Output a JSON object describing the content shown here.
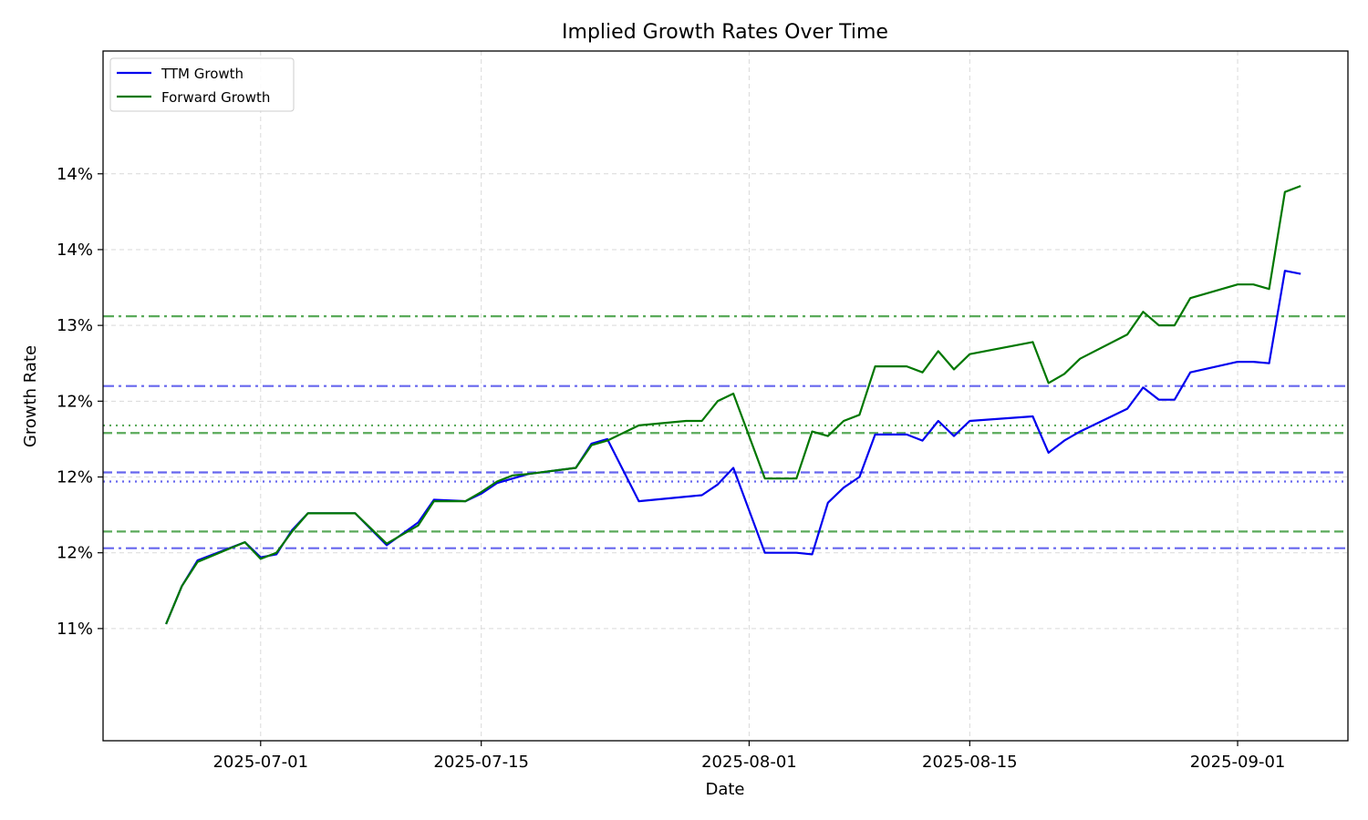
{
  "chart_data": {
    "type": "line",
    "title": "Implied Growth Rates Over Time",
    "xlabel": "Date",
    "ylabel": "Growth Rate",
    "xlim": [
      "2025-06-21",
      "2025-09-08"
    ],
    "ylim": [
      0.1026,
      0.1481
    ],
    "grid": true,
    "legend_position": "top-left",
    "x_ticks": [
      {
        "date": "2025-07-01",
        "label": "2025-07-01"
      },
      {
        "date": "2025-07-15",
        "label": "2025-07-15"
      },
      {
        "date": "2025-08-01",
        "label": "2025-08-01"
      },
      {
        "date": "2025-08-15",
        "label": "2025-08-15"
      },
      {
        "date": "2025-09-01",
        "label": "2025-09-01"
      }
    ],
    "y_ticks": [
      {
        "value": 0.11,
        "label": "11%"
      },
      {
        "value": 0.115,
        "label": "12%"
      },
      {
        "value": 0.12,
        "label": "12%"
      },
      {
        "value": 0.125,
        "label": "12%"
      },
      {
        "value": 0.13,
        "label": "13%"
      },
      {
        "value": 0.135,
        "label": "14%"
      },
      {
        "value": 0.14,
        "label": "14%"
      }
    ],
    "x": [
      "2025-06-25",
      "2025-06-26",
      "2025-06-27",
      "2025-06-30",
      "2025-07-01",
      "2025-07-02",
      "2025-07-03",
      "2025-07-04",
      "2025-07-07",
      "2025-07-09",
      "2025-07-11",
      "2025-07-12",
      "2025-07-14",
      "2025-07-15",
      "2025-07-16",
      "2025-07-17",
      "2025-07-18",
      "2025-07-21",
      "2025-07-22",
      "2025-07-23",
      "2025-07-25",
      "2025-07-28",
      "2025-07-29",
      "2025-07-30",
      "2025-07-31",
      "2025-08-02",
      "2025-08-04",
      "2025-08-05",
      "2025-08-06",
      "2025-08-07",
      "2025-08-08",
      "2025-08-09",
      "2025-08-11",
      "2025-08-12",
      "2025-08-13",
      "2025-08-14",
      "2025-08-15",
      "2025-08-19",
      "2025-08-20",
      "2025-08-21",
      "2025-08-22",
      "2025-08-25",
      "2025-08-26",
      "2025-08-27",
      "2025-08-28",
      "2025-08-29",
      "2025-09-01",
      "2025-09-02",
      "2025-09-03",
      "2025-09-04",
      "2025-09-05"
    ],
    "series": [
      {
        "name": "TTM Growth",
        "color": "#0000ee",
        "values": [
          0.1103,
          0.1128,
          0.1145,
          0.1157,
          0.1147,
          0.1149,
          0.1165,
          0.1176,
          0.1176,
          0.1155,
          0.117,
          0.1185,
          0.1184,
          0.1189,
          0.1196,
          0.1199,
          0.1202,
          0.1206,
          0.1222,
          0.1225,
          0.1184,
          0.1187,
          0.1188,
          0.1195,
          0.1206,
          0.115,
          0.115,
          0.1149,
          0.1183,
          0.1193,
          0.12,
          0.1228,
          0.1228,
          0.1224,
          0.1237,
          0.1227,
          0.1237,
          0.124,
          0.1216,
          0.1224,
          0.123,
          0.1245,
          0.1259,
          0.1251,
          0.1251,
          0.1269,
          0.1276,
          0.1276,
          0.1275,
          0.1336,
          0.1334
        ]
      },
      {
        "name": "Forward Growth",
        "color": "#007700",
        "values": [
          0.1103,
          0.1128,
          0.1144,
          0.1157,
          0.1146,
          0.115,
          0.1164,
          0.1176,
          0.1176,
          0.1156,
          0.1168,
          0.1184,
          0.1184,
          0.119,
          0.1197,
          0.1201,
          0.1202,
          0.1206,
          0.1221,
          0.1224,
          0.1234,
          0.1237,
          0.1237,
          0.125,
          0.1255,
          0.1199,
          0.1199,
          0.123,
          0.1227,
          0.1237,
          0.1241,
          0.1273,
          0.1273,
          0.1269,
          0.1283,
          0.1271,
          0.1281,
          0.1289,
          0.1262,
          0.1268,
          0.1278,
          0.1294,
          0.1309,
          0.13,
          0.13,
          0.1318,
          0.1327,
          0.1327,
          0.1324,
          0.1388,
          0.1392
        ]
      }
    ],
    "reference_lines": [
      {
        "value": 0.1153,
        "color": "#6666ee",
        "style": "dashdot"
      },
      {
        "value": 0.1203,
        "color": "#6666ee",
        "style": "dashed"
      },
      {
        "value": 0.1197,
        "color": "#6666ee",
        "style": "dotted"
      },
      {
        "value": 0.126,
        "color": "#6666ee",
        "style": "dashdot"
      },
      {
        "value": 0.1164,
        "color": "#5aaa5a",
        "style": "dashed"
      },
      {
        "value": 0.1229,
        "color": "#5aaa5a",
        "style": "dashed"
      },
      {
        "value": 0.1234,
        "color": "#5aaa5a",
        "style": "dotted"
      },
      {
        "value": 0.1306,
        "color": "#5aaa5a",
        "style": "dashdot"
      }
    ]
  }
}
